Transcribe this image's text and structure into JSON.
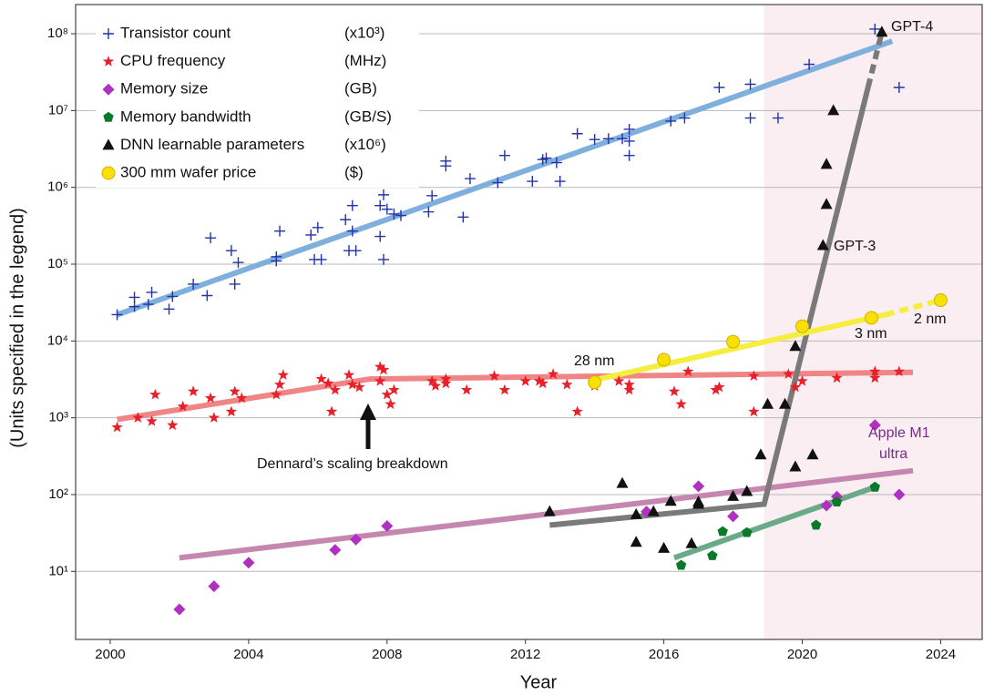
{
  "chart_data": {
    "type": "scatter",
    "x_label": "Year",
    "y_label": "(Units specified in the legend)",
    "log_y": true,
    "grid": true,
    "legend": "upper left",
    "xlim": [
      1999,
      2025.2
    ],
    "xticks": [
      2000,
      2004,
      2008,
      2012,
      2016,
      2020,
      2024
    ],
    "ylim": [
      1.3,
      240000000
    ],
    "yticks": [
      {
        "value": 10,
        "label": "10¹"
      },
      {
        "value": 100,
        "label": "10²"
      },
      {
        "value": 1000,
        "label": "10³"
      },
      {
        "value": 10000,
        "label": "10⁴"
      },
      {
        "value": 100000,
        "label": "10⁵"
      },
      {
        "value": 1000000,
        "label": "10⁶"
      },
      {
        "value": 10000000,
        "label": "10⁷"
      },
      {
        "value": 100000000,
        "label": "10⁸"
      }
    ],
    "highlight_xrange": [
      2018.9,
      2025.2
    ],
    "highlight_color": "#fbeef2",
    "series": [
      {
        "name": "Transistor count",
        "unit": "(x10³)",
        "marker": "plus",
        "color": "#2233aa",
        "x": [
          2000.2,
          2000.7,
          2000.7,
          2001.1,
          2001.2,
          2001.7,
          2001.8,
          2002.4,
          2002.8,
          2002.9,
          2003.5,
          2003.6,
          2003.7,
          2004.8,
          2004.8,
          2004.9,
          2005.8,
          2005.9,
          2006.0,
          2006.1,
          2006.8,
          2006.9,
          2007.0,
          2007.0,
          2007.1,
          2007.8,
          2007.8,
          2007.9,
          2007.9,
          2008.0,
          2008.2,
          2008.4,
          2009.2,
          2009.3,
          2009.7,
          2009.7,
          2010.2,
          2010.4,
          2011.2,
          2011.4,
          2012.2,
          2012.5,
          2012.6,
          2012.9,
          2013.0,
          2013.5,
          2014.0,
          2014.4,
          2014.8,
          2015.0,
          2015.0,
          2015.0,
          2016.2,
          2016.6,
          2017.6,
          2018.5,
          2018.5,
          2019.3,
          2020.2,
          2022.1,
          2022.8
        ],
        "values": [
          22000,
          28000,
          37000,
          30000,
          43000,
          26000,
          38000,
          55000,
          39000,
          220000,
          150000,
          55000,
          105000,
          110000,
          125000,
          270000,
          240000,
          115000,
          300000,
          115000,
          380000,
          150000,
          580000,
          270000,
          150000,
          580000,
          230000,
          800000,
          115000,
          520000,
          450000,
          430000,
          480000,
          780000,
          2200000,
          1900000,
          410000,
          1300000,
          1150000,
          2600000,
          1200000,
          2300000,
          2400000,
          2100000,
          1200000,
          5000000,
          4200000,
          4300000,
          4300000,
          5700000,
          4000000,
          2600000,
          7300000,
          8000000,
          20000000,
          22000000,
          8000000,
          8000000,
          40000000,
          115000000,
          20000000
        ],
        "trend": {
          "color": "#7fb0dd",
          "x": [
            2000.2,
            2022.6
          ],
          "values": [
            22000,
            80000000
          ]
        }
      },
      {
        "name": "CPU frequency",
        "unit": "(MHz)",
        "marker": "star",
        "color": "#e8202a",
        "x": [
          2000.2,
          2000.8,
          2001.2,
          2001.3,
          2001.8,
          2002.1,
          2002.4,
          2002.9,
          2003.0,
          2003.5,
          2003.6,
          2003.8,
          2004.8,
          2004.9,
          2005.0,
          2006.1,
          2006.3,
          2006.4,
          2006.5,
          2006.9,
          2007.0,
          2007.2,
          2007.8,
          2007.8,
          2007.9,
          2008.0,
          2008.1,
          2008.2,
          2009.3,
          2009.4,
          2009.7,
          2009.7,
          2010.3,
          2011.1,
          2011.4,
          2012.0,
          2012.4,
          2012.5,
          2012.8,
          2013.2,
          2013.5,
          2014.0,
          2014.7,
          2015.0,
          2015.0,
          2016.3,
          2016.5,
          2016.7,
          2017.5,
          2017.6,
          2018.6,
          2018.6,
          2019.6,
          2019.8,
          2020.0,
          2021.0,
          2022.1,
          2022.1,
          2022.8
        ],
        "values": [
          750,
          1000,
          900,
          2000,
          800,
          1400,
          2200,
          1800,
          1000,
          1200,
          2200,
          1800,
          2000,
          2700,
          3600,
          3200,
          2800,
          1200,
          2300,
          3600,
          2700,
          2500,
          3000,
          4600,
          4200,
          2000,
          1500,
          2300,
          3000,
          2600,
          3200,
          2800,
          2300,
          3500,
          2300,
          3000,
          3000,
          2800,
          3700,
          2700,
          1200,
          2600,
          3000,
          2300,
          2700,
          2200,
          1500,
          4000,
          2300,
          2500,
          1200,
          3500,
          3700,
          2500,
          3000,
          3300,
          4000,
          3300,
          4000
        ],
        "trend": {
          "color": "#f08585",
          "x": [
            2000.2,
            2007.5,
            2023.2
          ],
          "values": [
            950,
            3200,
            3900
          ]
        }
      },
      {
        "name": "Memory size",
        "unit": "(GB)",
        "marker": "diamond",
        "color": "#b030c0",
        "x": [
          2002.0,
          2003.0,
          2004.0,
          2006.5,
          2007.1,
          2008.0,
          2015.5,
          2017.0,
          2018.0,
          2020.7,
          2021.0,
          2022.1,
          2022.8
        ],
        "values": [
          3.2,
          6.4,
          13,
          19,
          26,
          39,
          60,
          128,
          52,
          72,
          94,
          800,
          100
        ],
        "trend": {
          "color": "#c587b0",
          "x": [
            2002.0,
            2023.2
          ],
          "values": [
            15,
            205
          ]
        }
      },
      {
        "name": "Memory bandwidth",
        "unit": "(GB/S)",
        "marker": "pentagon",
        "color": "#0a7a2a",
        "x": [
          2016.5,
          2017.4,
          2017.7,
          2018.4,
          2020.4,
          2021.0,
          2022.1
        ],
        "values": [
          12,
          16,
          33,
          32,
          40,
          80,
          125
        ],
        "trend": {
          "color": "#6aaa88",
          "x": [
            2016.3,
            2022.1
          ],
          "values": [
            15,
            125
          ]
        }
      },
      {
        "name": "DNN learnable parameters",
        "unit": "(x10⁶)",
        "marker": "triangle",
        "color": "#111111",
        "x": [
          2012.7,
          2014.8,
          2015.2,
          2015.2,
          2015.7,
          2016.0,
          2016.2,
          2016.8,
          2017.0,
          2017.0,
          2018.0,
          2018.4,
          2018.8,
          2019.0,
          2019.5,
          2019.8,
          2019.8,
          2020.3,
          2020.6,
          2020.7,
          2020.7,
          2020.9,
          2022.3
        ],
        "values": [
          60,
          140,
          24,
          55,
          60,
          20,
          82,
          23,
          80,
          75,
          95,
          110,
          330,
          1500,
          1500,
          8500,
          230,
          330,
          175000,
          600000,
          2000000,
          10000000,
          105000000
        ],
        "trend": {
          "color": "#7a7a7a",
          "x": [
            2012.7,
            2018.9,
            2021.9
          ],
          "values": [
            40,
            75,
            20000000
          ]
        },
        "trend_dashed": {
          "color": "#7a7a7a",
          "x": [
            2021.9,
            2022.3
          ],
          "values": [
            20000000,
            105000000
          ]
        }
      },
      {
        "name": "300 mm wafer price",
        "unit": "($)",
        "marker": "circle",
        "color": "#f8e000",
        "x": [
          2014.0,
          2016.0,
          2018.0,
          2020.0,
          2022.0,
          2024.0
        ],
        "values": [
          2900,
          5700,
          9800,
          15500,
          20000,
          34000
        ],
        "trend": {
          "color": "#f5ee40",
          "x": [
            2014.0,
            2022.4
          ],
          "values": [
            3100,
            22000
          ]
        },
        "trend_dashed": {
          "color": "#f5ee40",
          "x": [
            2022.4,
            2024.0
          ],
          "values": [
            22000,
            34000
          ]
        }
      }
    ],
    "annotations": [
      "GPT-4",
      "GPT-3",
      "28 nm",
      "3 nm",
      "2 nm",
      "Apple M1",
      "ultra",
      "Dennard’s scaling breakdown"
    ]
  }
}
